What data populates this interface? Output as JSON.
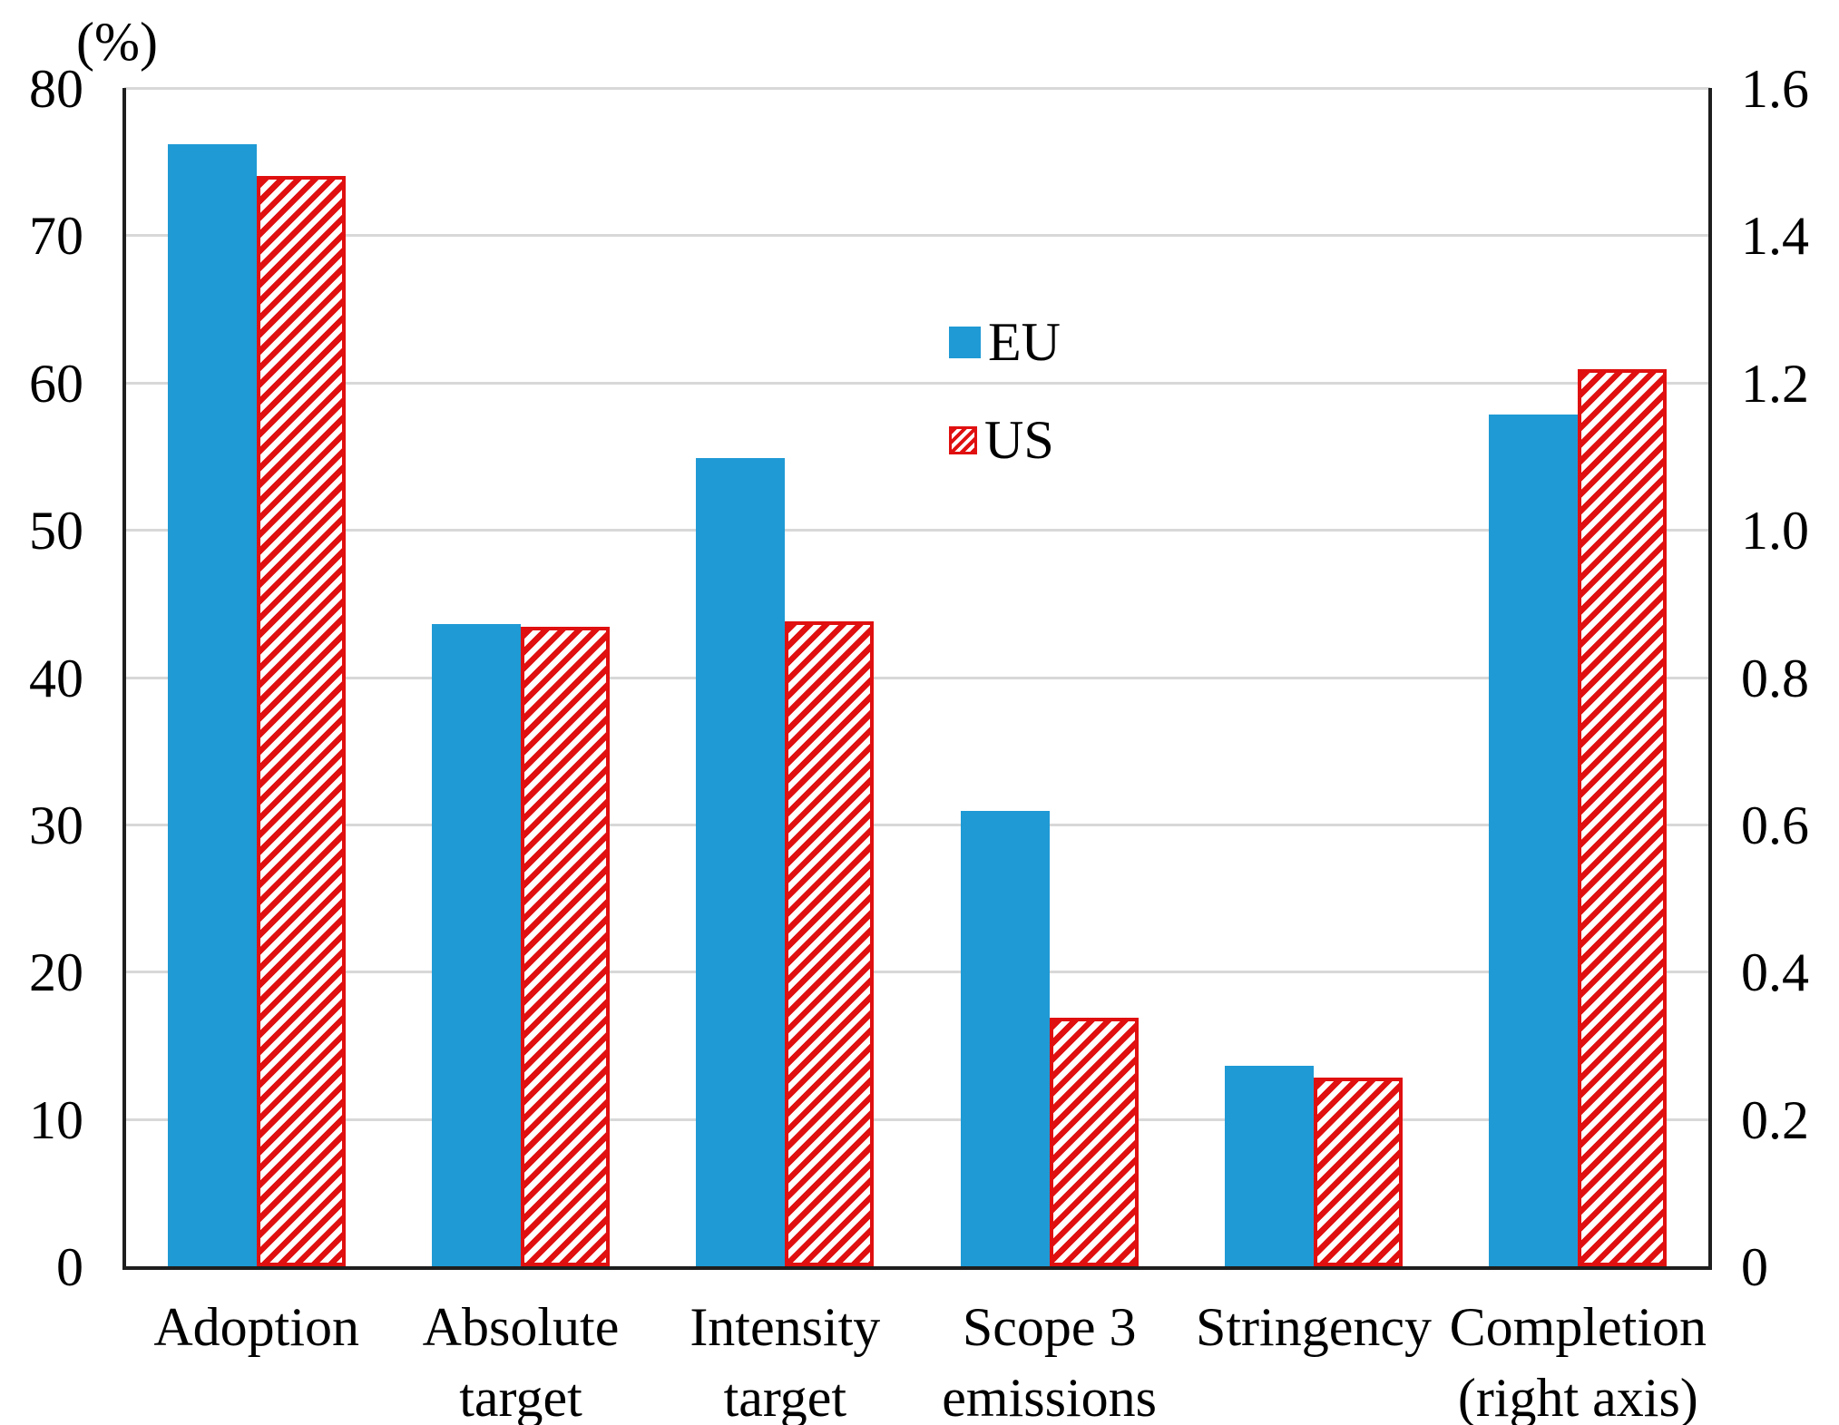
{
  "chart_data": {
    "type": "bar",
    "title": "",
    "grid": true,
    "legend_position": "upper-center-right",
    "left_axis": {
      "unit_label": "(%)",
      "min": 0,
      "max": 80,
      "tick_labels": [
        "0",
        "10",
        "20",
        "30",
        "40",
        "50",
        "60",
        "70",
        "80"
      ]
    },
    "right_axis": {
      "min": 0,
      "max": 1.6,
      "tick_labels": [
        "0",
        "0.2",
        "0.4",
        "0.6",
        "0.8",
        "1.0",
        "1.2",
        "1.4",
        "1.6"
      ]
    },
    "categories": [
      [
        "Adoption"
      ],
      [
        "Absolute",
        "target"
      ],
      [
        "Intensity",
        "target"
      ],
      [
        "Scope 3",
        "emissions"
      ],
      [
        "Stringency"
      ],
      [
        "Completion",
        "(right axis)"
      ]
    ],
    "series": [
      {
        "name": "EU",
        "fill": "solid",
        "color": "#1f9ad5",
        "values_left_scale": [
          76.2,
          43.6,
          54.9,
          30.9,
          13.6,
          57.8
        ]
      },
      {
        "name": "US",
        "fill": "diagonal-hatch",
        "color": "#e01010",
        "values_left_scale": [
          74.0,
          43.4,
          43.8,
          16.9,
          12.8,
          60.9
        ]
      }
    ],
    "completion_right_axis_values": {
      "EU": 1.16,
      "US": 1.22
    }
  },
  "legend": {
    "items": [
      {
        "label": "EU"
      },
      {
        "label": "US"
      }
    ]
  }
}
